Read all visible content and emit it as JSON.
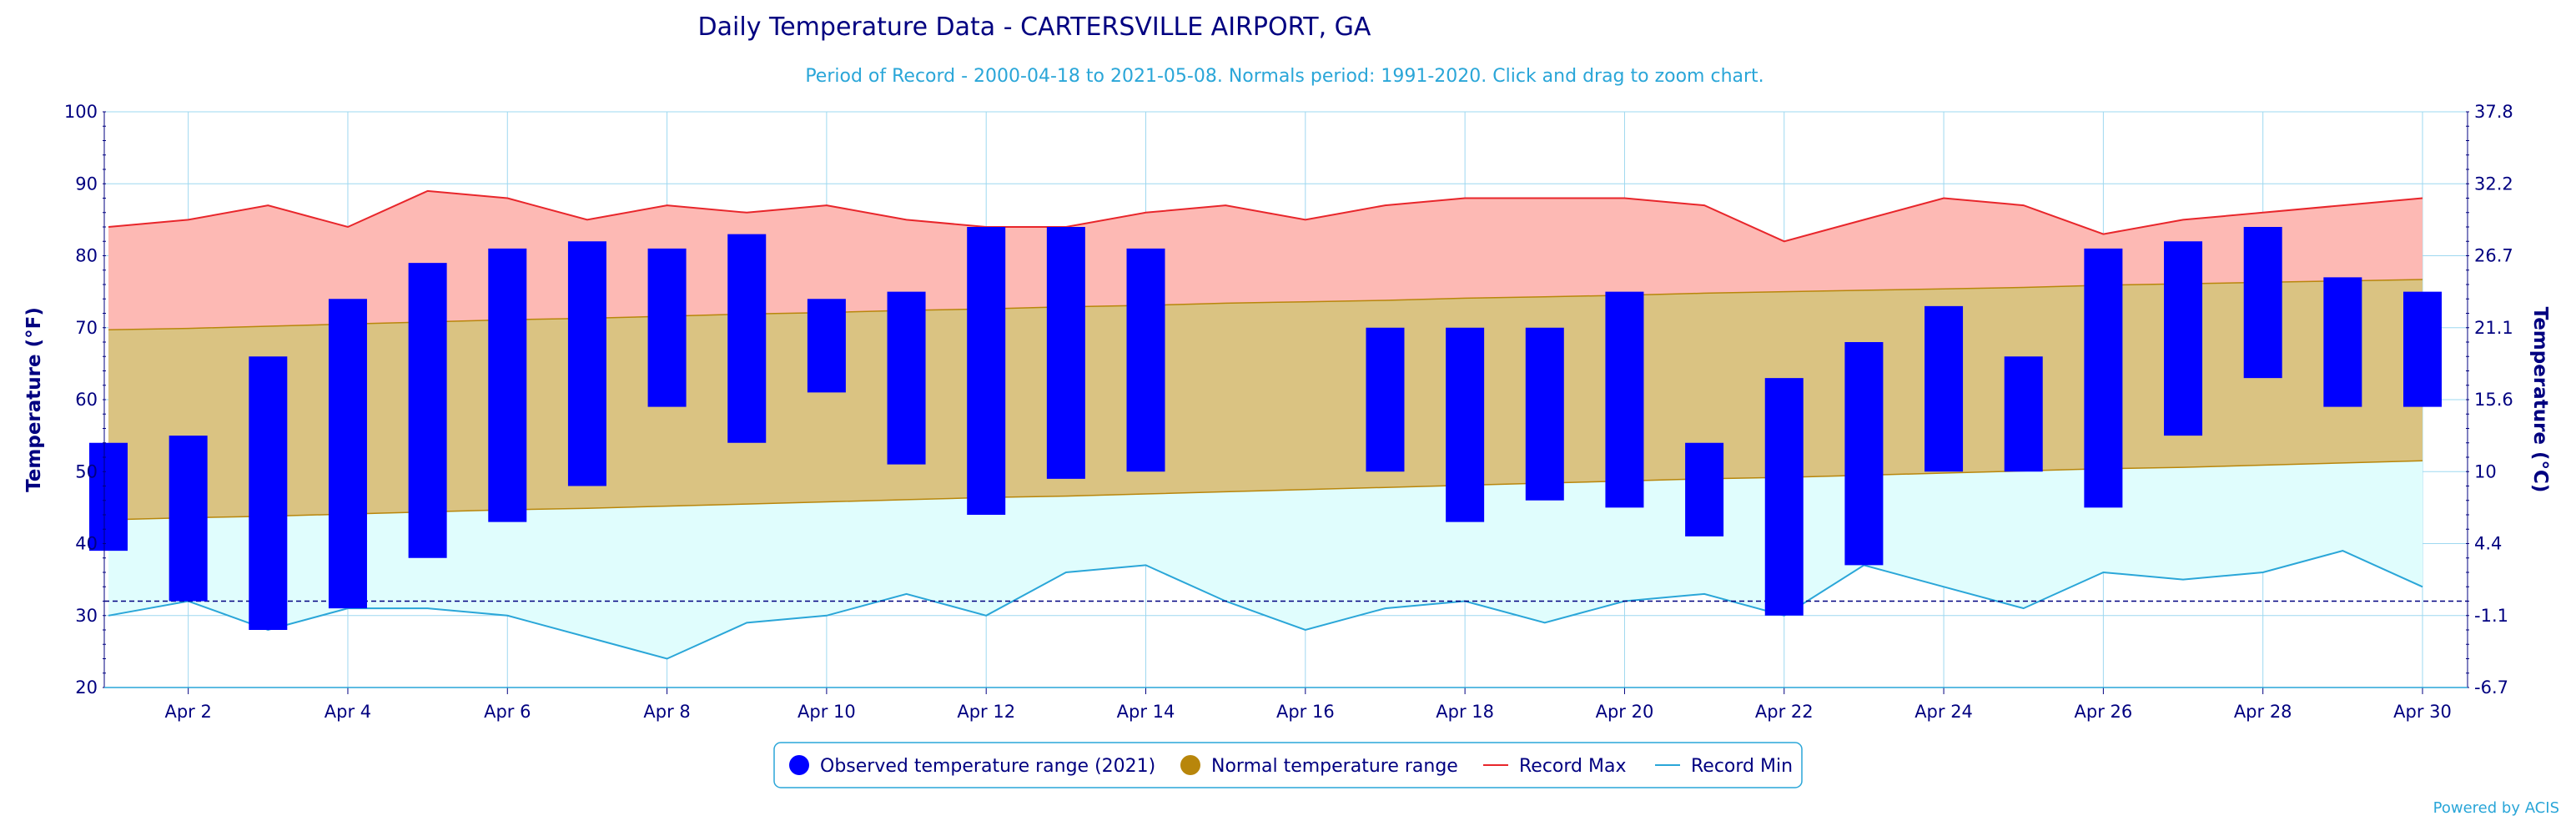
{
  "chart_data": {
    "type": "bar",
    "title": "Daily Temperature Data - CARTERSVILLE AIRPORT, GA",
    "subtitle": "Period of Record - 2000-04-18 to 2021-05-08. Normals period: 1991-2020. Click and drag to zoom chart.",
    "ylabel": "Temperature (°F)",
    "ylabel_right": "Temperature (°C)",
    "ylim": [
      20,
      100
    ],
    "yticks": [
      20,
      30,
      40,
      50,
      60,
      70,
      80,
      90,
      100
    ],
    "yticks_right": [
      "-6.7",
      "-1.1",
      "4.4",
      "10",
      "15.6",
      "21.1",
      "26.7",
      "32.2",
      "37.8"
    ],
    "days": [
      1,
      2,
      3,
      4,
      5,
      6,
      7,
      8,
      9,
      10,
      11,
      12,
      13,
      14,
      15,
      16,
      17,
      18,
      19,
      20,
      21,
      22,
      23,
      24,
      25,
      26,
      27,
      28,
      29,
      30
    ],
    "x_tick_labels": [
      "Apr 2",
      "Apr 4",
      "Apr 6",
      "Apr 8",
      "Apr 10",
      "Apr 12",
      "Apr 14",
      "Apr 16",
      "Apr 18",
      "Apr 20",
      "Apr 22",
      "Apr 24",
      "Apr 26",
      "Apr 28",
      "Apr 30"
    ],
    "freezing_line": 32,
    "grid": true,
    "legend_position": "bottom",
    "series": [
      {
        "name": "Observed temperature range (2021)",
        "color": "#0000ff",
        "high": [
          54,
          55,
          66,
          74,
          79,
          81,
          82,
          81,
          83,
          74,
          75,
          84,
          84,
          81,
          null,
          null,
          70,
          70,
          70,
          75,
          54,
          63,
          68,
          73,
          66,
          81,
          82,
          84,
          77,
          75
        ],
        "low": [
          39,
          32,
          28,
          31,
          38,
          43,
          48,
          59,
          54,
          61,
          51,
          44,
          49,
          50,
          null,
          null,
          50,
          43,
          46,
          45,
          41,
          30,
          37,
          50,
          50,
          45,
          55,
          63,
          59,
          59
        ]
      },
      {
        "name": "Normal temperature range",
        "color": "#b8860b",
        "fill": "#dac382",
        "high": [
          69.7,
          69.9,
          70.2,
          70.5,
          70.8,
          71.1,
          71.3,
          71.6,
          71.9,
          72.1,
          72.4,
          72.6,
          72.9,
          73.1,
          73.4,
          73.6,
          73.8,
          74.1,
          74.3,
          74.5,
          74.8,
          75.0,
          75.2,
          75.4,
          75.6,
          75.9,
          76.1,
          76.3,
          76.5,
          76.7
        ],
        "low": [
          43.3,
          43.6,
          43.8,
          44.1,
          44.4,
          44.7,
          44.9,
          45.2,
          45.5,
          45.8,
          46.1,
          46.4,
          46.6,
          46.9,
          47.2,
          47.5,
          47.8,
          48.1,
          48.4,
          48.7,
          49.0,
          49.2,
          49.5,
          49.8,
          50.1,
          50.4,
          50.6,
          50.9,
          51.2,
          51.5
        ]
      },
      {
        "name": "Record Max",
        "color": "#e8262b",
        "fill": "#fdb9b4",
        "values": [
          84,
          85,
          87,
          84,
          89,
          88,
          85,
          87,
          86,
          87,
          85,
          84,
          84,
          86,
          87,
          85,
          87,
          88,
          88,
          88,
          87,
          82,
          85,
          88,
          87,
          83,
          85,
          86,
          87,
          88
        ]
      },
      {
        "name": "Record Min",
        "color": "#2aa6d8",
        "fill": "#e0fdfd",
        "values": [
          30,
          32,
          28,
          31,
          31,
          30,
          27,
          24,
          29,
          30,
          33,
          30,
          36,
          37,
          32,
          28,
          31,
          32,
          29,
          32,
          33,
          30,
          37,
          34,
          31,
          36,
          35,
          36,
          39,
          34
        ]
      }
    ]
  },
  "credit": "Powered by ACIS"
}
